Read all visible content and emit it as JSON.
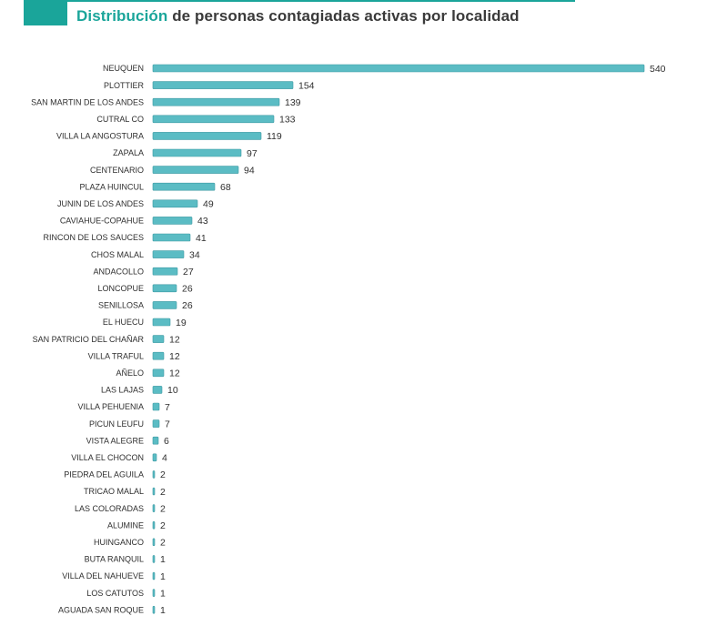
{
  "title": {
    "highlight": "Distribución",
    "rest": " de personas contagiadas activas por localidad"
  },
  "colors": {
    "accent": "#1aa59a",
    "bar": "#5bbcc4",
    "bar_edge": "#3e9aa3",
    "text": "#2f2f2f"
  },
  "chart_data": {
    "type": "bar",
    "orientation": "horizontal",
    "title": "Distribución de personas contagiadas activas por localidad",
    "xlabel": "",
    "ylabel": "",
    "grid": false,
    "legend": "none",
    "xlim": [
      0,
      540
    ],
    "categories": [
      "NEUQUEN",
      "PLOTTIER",
      "SAN MARTIN DE LOS ANDES",
      "CUTRAL CO",
      "VILLA LA ANGOSTURA",
      "ZAPALA",
      "CENTENARIO",
      "PLAZA HUINCUL",
      "JUNIN DE LOS ANDES",
      "CAVIAHUE-COPAHUE",
      "RINCON DE LOS SAUCES",
      "CHOS MALAL",
      "ANDACOLLO",
      "LONCOPUE",
      "SENILLOSA",
      "EL HUECU",
      "SAN PATRICIO DEL CHAÑAR",
      "VILLA TRAFUL",
      "AÑELO",
      "LAS LAJAS",
      "VILLA PEHUENIA",
      "PICUN LEUFU",
      "VISTA ALEGRE",
      "VILLA EL CHOCON",
      "PIEDRA DEL AGUILA",
      "TRICAO MALAL",
      "LAS COLORADAS",
      "ALUMINE",
      "HUINGANCO",
      "BUTA RANQUIL",
      "VILLA DEL NAHUEVE",
      "LOS CATUTOS",
      "AGUADA SAN ROQUE"
    ],
    "values": [
      540,
      154,
      139,
      133,
      119,
      97,
      94,
      68,
      49,
      43,
      41,
      34,
      27,
      26,
      26,
      19,
      12,
      12,
      12,
      10,
      7,
      7,
      6,
      4,
      2,
      2,
      2,
      2,
      2,
      1,
      1,
      1,
      1
    ]
  }
}
